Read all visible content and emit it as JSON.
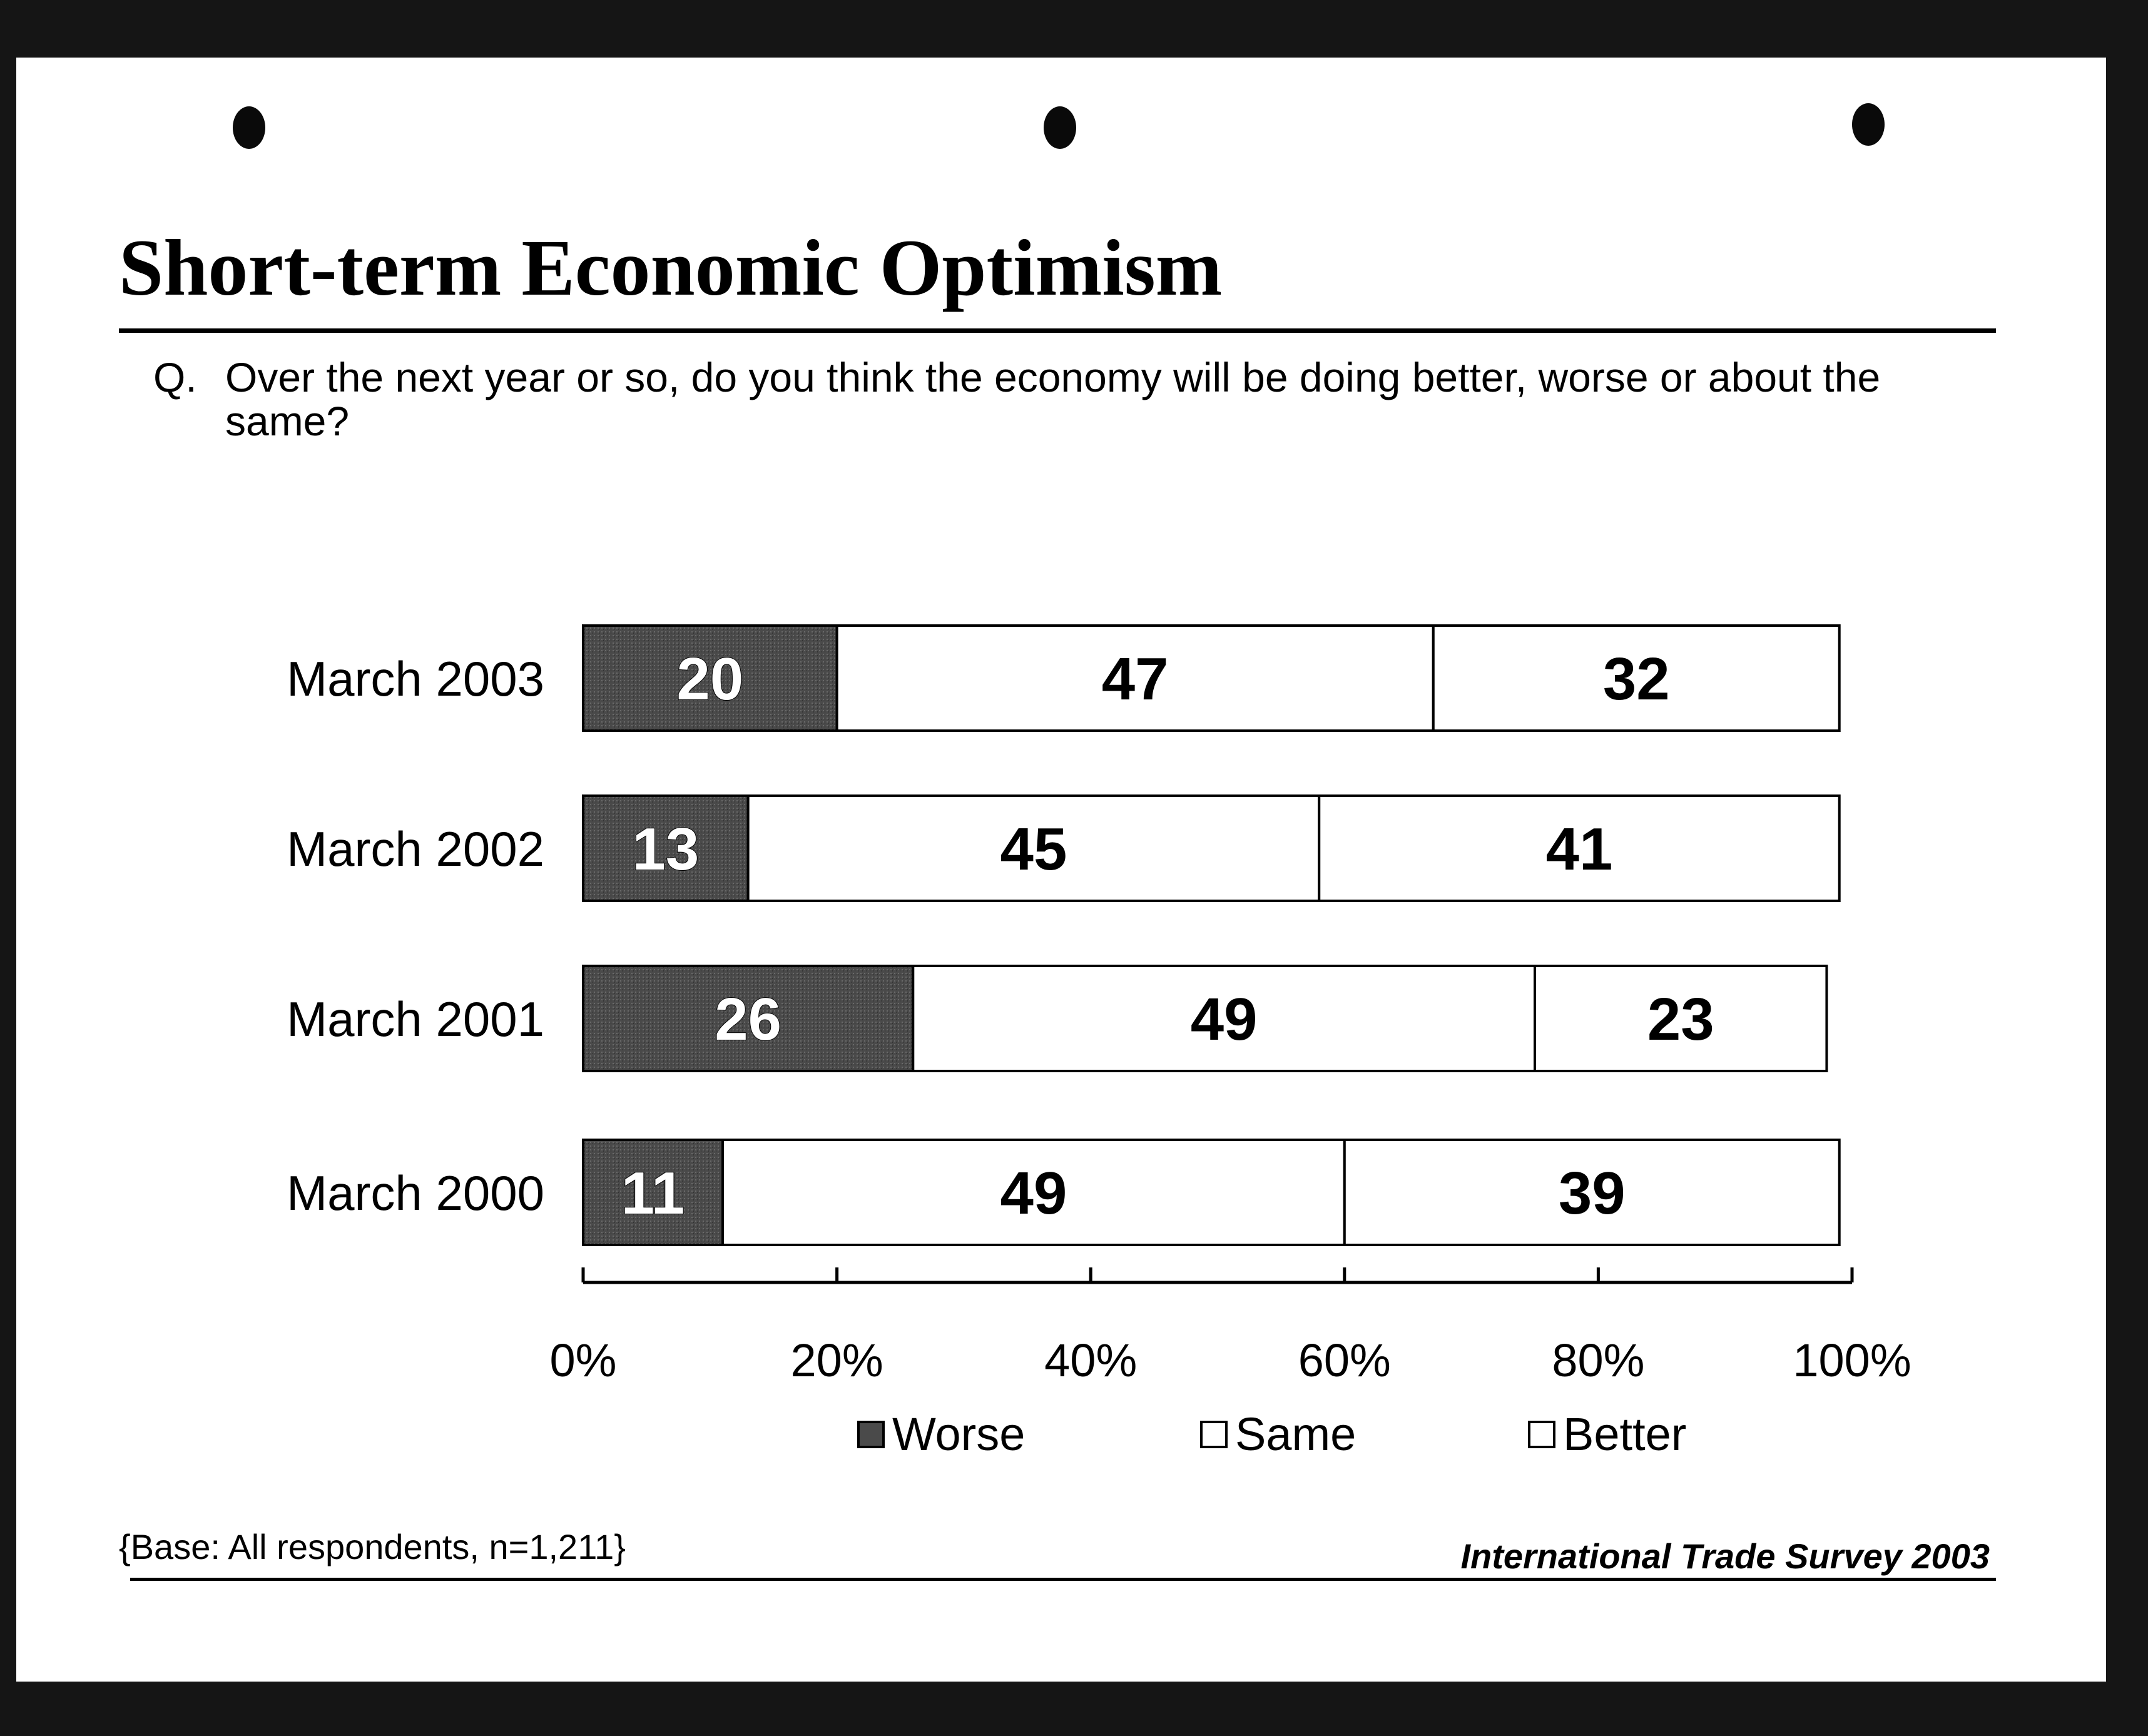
{
  "title": "Short-term Economic Optimism",
  "question": {
    "prefix": "Q.",
    "text": "Over the next year or so, do you think the economy will be doing better, worse or about the same?"
  },
  "footnote": "{Base: All respondents, n=1,211}",
  "source": "International Trade Survey 2003",
  "colors": {
    "worse": "#4a4a4a",
    "same": "#ffffff",
    "better": "#ffffff",
    "outline": "#000000"
  },
  "chart_data": {
    "type": "bar",
    "orientation": "horizontal",
    "stacked": true,
    "categories": [
      "March 2003",
      "March 2002",
      "March 2001",
      "March 2000"
    ],
    "series": [
      {
        "name": "Worse",
        "values": [
          20,
          13,
          26,
          11
        ]
      },
      {
        "name": "Same",
        "values": [
          47,
          45,
          49,
          49
        ]
      },
      {
        "name": "Better",
        "values": [
          32,
          41,
          23,
          39
        ]
      }
    ],
    "xlim": [
      0,
      100
    ],
    "x_ticks": [
      "0%",
      "20%",
      "40%",
      "60%",
      "80%",
      "100%"
    ],
    "legend_position": "bottom",
    "grid": false
  }
}
